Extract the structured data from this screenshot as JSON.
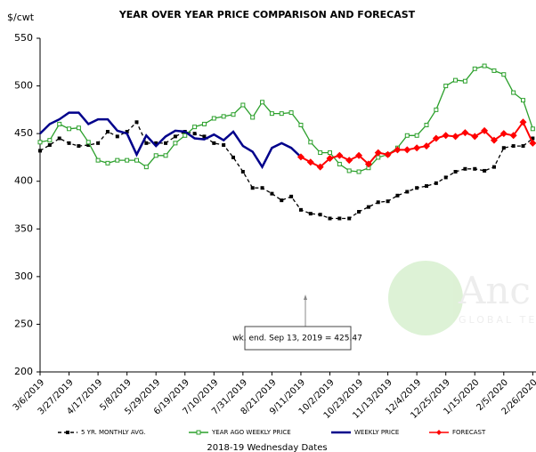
{
  "chart_data": {
    "type": "line",
    "title": "YEAR OVER YEAR PRICE COMPARISON AND FORECAST",
    "y_label": "$/cwt",
    "x_label": "2018-19 Wednesday Dates",
    "categories": [
      "3/6/2019",
      null,
      null,
      "3/27/2019",
      null,
      null,
      "4/17/2019",
      null,
      null,
      "5/8/2019",
      null,
      null,
      "5/29/2019",
      null,
      null,
      "6/19/2019",
      null,
      null,
      "7/10/2019",
      null,
      null,
      "7/31/2019",
      null,
      null,
      "8/21/2019",
      null,
      null,
      "9/11/2019",
      null,
      null,
      "10/2/2019",
      null,
      null,
      "10/23/2019",
      null,
      null,
      "11/13/2019",
      null,
      null,
      "12/4/2019",
      null,
      null,
      "12/25/2019",
      null,
      null,
      "1/15/2020",
      null,
      null,
      "2/5/2020",
      null,
      null,
      "2/26/2020"
    ],
    "ylim": [
      200,
      550
    ],
    "yticks": [
      200,
      250,
      300,
      350,
      400,
      450,
      500,
      550
    ],
    "series": [
      {
        "name": "5 YR. MONTHLY AVG.",
        "color": "#000000",
        "marker": "square",
        "dash": true,
        "values": [
          432,
          438,
          445,
          440,
          437,
          438,
          440,
          452,
          447,
          452,
          462,
          440,
          440,
          440,
          447,
          452,
          450,
          447,
          440,
          438,
          425,
          410,
          393,
          393,
          387,
          380,
          384,
          370,
          366,
          365,
          361,
          361,
          361,
          368,
          373,
          378,
          379,
          385,
          389,
          393,
          395,
          398,
          404,
          410,
          413,
          413,
          411,
          415,
          435,
          437,
          437,
          445
        ]
      },
      {
        "name": "YEAR AGO WEEKLY PRICE",
        "color": "#2ca02c",
        "marker": "hollow-square",
        "dash": false,
        "values": [
          441,
          443,
          460,
          455,
          456,
          441,
          422,
          419,
          422,
          422,
          422,
          415,
          427,
          427,
          440,
          448,
          457,
          460,
          466,
          468,
          470,
          480,
          467,
          483,
          471,
          471,
          472,
          459,
          441,
          430,
          430,
          418,
          411,
          410,
          414,
          425,
          428,
          435,
          448,
          448,
          459,
          475,
          500,
          506,
          505,
          518,
          521,
          516,
          512,
          493,
          485,
          455
        ]
      },
      {
        "name": "WEEKLY PRICE",
        "color": "#00008b",
        "marker": "none",
        "dash": false,
        "values": [
          450,
          460,
          465,
          472,
          472,
          460,
          465,
          465,
          453,
          450,
          428,
          448,
          437,
          447,
          453,
          452,
          445,
          444,
          449,
          443,
          452,
          437,
          431,
          415,
          435,
          440,
          435,
          425.47,
          null,
          null,
          null,
          null,
          null,
          null,
          null,
          null,
          null,
          null,
          null,
          null,
          null,
          null,
          null,
          null,
          null,
          null,
          null,
          null,
          null,
          null,
          null,
          null
        ]
      },
      {
        "name": "FORECAST",
        "color": "#ff0000",
        "marker": "diamond",
        "dash": false,
        "values": [
          null,
          null,
          null,
          null,
          null,
          null,
          null,
          null,
          null,
          null,
          null,
          null,
          null,
          null,
          null,
          null,
          null,
          null,
          null,
          null,
          null,
          null,
          null,
          null,
          null,
          null,
          null,
          425.47,
          420,
          415,
          424,
          427,
          422,
          427,
          418,
          430,
          428,
          433,
          433,
          435,
          437,
          445,
          448,
          447,
          451,
          447,
          453,
          443,
          450,
          448,
          462,
          440
        ]
      }
    ],
    "annotation": "wk. end. Sep 13, 2019  = 425.47",
    "watermark": {
      "text": "Anc",
      "subtext": "GLOBAL TE"
    }
  }
}
